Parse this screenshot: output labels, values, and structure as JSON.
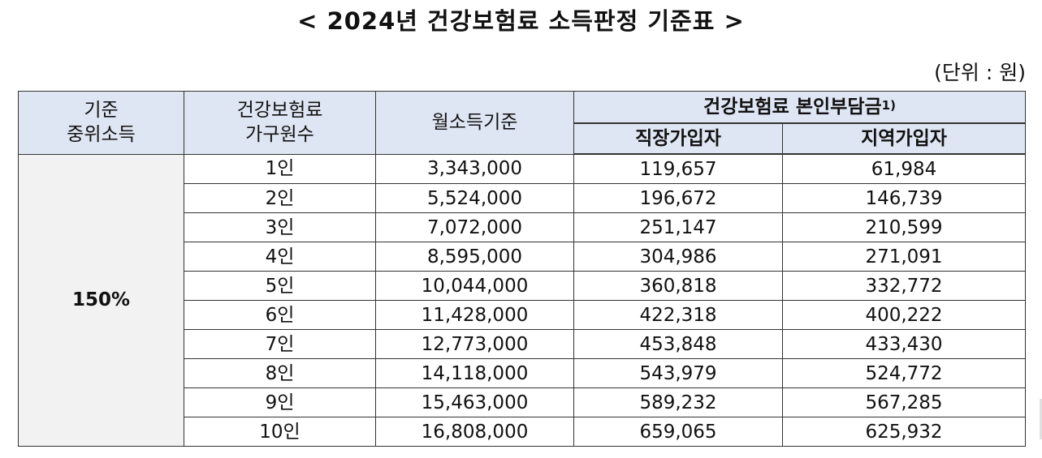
{
  "title": "< 2024년 건강보험료 소득판정 기준표 >",
  "unit": "(단위 : 원)",
  "headers": {
    "median_income": [
      "기준",
      "중위소득"
    ],
    "household": [
      "건강보험료",
      "가구원수"
    ],
    "monthly_income": "월소득기준",
    "premium_group": "건강보험료 본인부담금",
    "premium_note": "1)",
    "employee": "직장가입자",
    "regional": "지역가입자"
  },
  "ratio": "150%",
  "rows": [
    {
      "household": "1인",
      "monthly_income": "3,343,000",
      "employee": "119,657",
      "regional": "61,984"
    },
    {
      "household": "2인",
      "monthly_income": "5,524,000",
      "employee": "196,672",
      "regional": "146,739"
    },
    {
      "household": "3인",
      "monthly_income": "7,072,000",
      "employee": "251,147",
      "regional": "210,599"
    },
    {
      "household": "4인",
      "monthly_income": "8,595,000",
      "employee": "304,986",
      "regional": "271,091"
    },
    {
      "household": "5인",
      "monthly_income": "10,044,000",
      "employee": "360,818",
      "regional": "332,772"
    },
    {
      "household": "6인",
      "monthly_income": "11,428,000",
      "employee": "422,318",
      "regional": "400,222"
    },
    {
      "household": "7인",
      "monthly_income": "12,773,000",
      "employee": "453,848",
      "regional": "433,430"
    },
    {
      "household": "8인",
      "monthly_income": "14,118,000",
      "employee": "543,979",
      "regional": "524,772"
    },
    {
      "household": "9인",
      "monthly_income": "15,463,000",
      "employee": "589,232",
      "regional": "567,285"
    },
    {
      "household": "10인",
      "monthly_income": "16,808,000",
      "employee": "659,065",
      "regional": "625,932"
    }
  ]
}
